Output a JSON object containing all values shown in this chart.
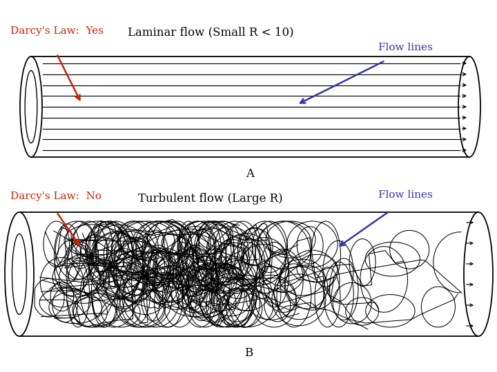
{
  "bg_color": "#ffffff",
  "text_color": "#000000",
  "red_color": "#cc2200",
  "blue_color": "#3333aa",
  "label_darcy_yes": "Darcy's Law:  Yes",
  "label_darcy_no": "Darcy's Law:  No",
  "label_laminar": "Laminar flow (Small R < 10)",
  "label_turbulent": "Turbulent flow (Large R)",
  "label_flow_lines_1": "Flow lines",
  "label_flow_lines_2": "Flow lines",
  "label_A": "A",
  "label_B": "B",
  "figsize": [
    7.2,
    5.4
  ],
  "dpi": 100
}
